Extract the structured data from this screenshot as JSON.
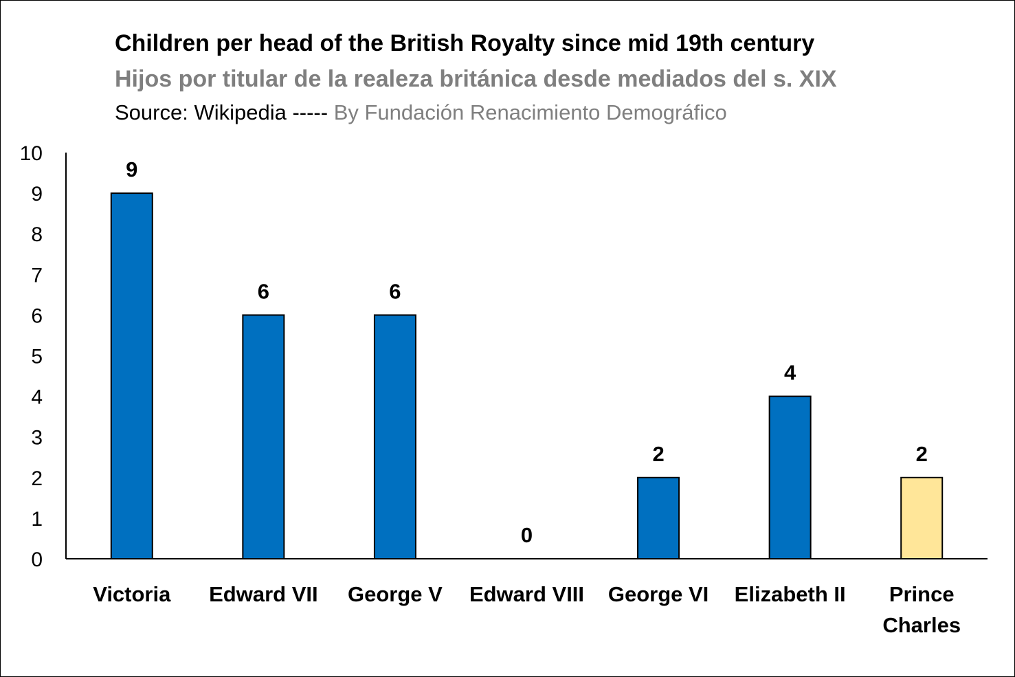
{
  "chart_data": {
    "type": "bar",
    "title": "Children per head of the British Royalty since mid 19th century",
    "subtitle": "Hijos por titular de la realeza británica desde mediados del s. XIX",
    "source": "Source: Wikipedia -----",
    "credit": "By Fundación Renacimiento Demográfico",
    "categories": [
      "Victoria",
      "Edward VII",
      "George V",
      "Edward VIII",
      "George VI",
      "Elizabeth II",
      "Prince Charles"
    ],
    "category_lines": [
      [
        "Victoria"
      ],
      [
        "Edward VII"
      ],
      [
        "George V"
      ],
      [
        "Edward VIII"
      ],
      [
        "George VI"
      ],
      [
        "Elizabeth II"
      ],
      [
        "Prince",
        "Charles"
      ]
    ],
    "values": [
      9,
      6,
      6,
      0,
      2,
      4,
      2
    ],
    "bar_colors": [
      "#0070c0",
      "#0070c0",
      "#0070c0",
      "#0070c0",
      "#0070c0",
      "#0070c0",
      "#ffe699"
    ],
    "bar_outline": "#000000",
    "ylim": [
      0,
      10
    ],
    "yticks": [
      0,
      1,
      2,
      3,
      4,
      5,
      6,
      7,
      8,
      9,
      10
    ],
    "xlabel": "",
    "ylabel": "",
    "grid": false,
    "legend": "none",
    "data_labels": true
  }
}
